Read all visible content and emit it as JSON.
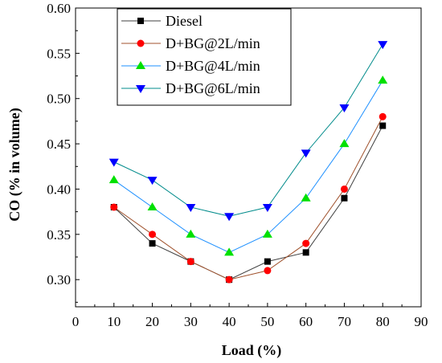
{
  "chart_data": {
    "type": "line",
    "xlabel": "Load (%)",
    "ylabel": "CO (% in volume)",
    "xlim": [
      0,
      90
    ],
    "ylim": [
      0.27,
      0.6
    ],
    "x_ticks": [
      0,
      10,
      20,
      30,
      40,
      50,
      60,
      70,
      80,
      90
    ],
    "y_ticks": [
      0.3,
      0.35,
      0.4,
      0.45,
      0.5,
      0.55,
      0.6
    ],
    "x_tick_labels": [
      "0",
      "10",
      "20",
      "30",
      "40",
      "50",
      "60",
      "70",
      "80",
      "90"
    ],
    "y_tick_labels": [
      "0.30",
      "0.35",
      "0.40",
      "0.45",
      "0.50",
      "0.55",
      "0.60"
    ],
    "grid": false,
    "legend_position": "top-left",
    "x": [
      10,
      20,
      30,
      40,
      50,
      60,
      70,
      80
    ],
    "series": [
      {
        "name": "Diesel",
        "values": [
          0.38,
          0.34,
          0.32,
          0.3,
          0.32,
          0.33,
          0.39,
          0.47
        ],
        "color": "#000000",
        "marker": "square"
      },
      {
        "name": "D+BG@2L/min",
        "values": [
          0.38,
          0.35,
          0.32,
          0.3,
          0.31,
          0.34,
          0.4,
          0.48
        ],
        "color": "#ff0000",
        "marker": "circle"
      },
      {
        "name": "D+BG@4L/min",
        "values": [
          0.41,
          0.38,
          0.35,
          0.33,
          0.35,
          0.39,
          0.45,
          0.52
        ],
        "color": "#00e000",
        "marker": "triangle-up"
      },
      {
        "name": "D+BG@6L/min",
        "values": [
          0.43,
          0.41,
          0.38,
          0.37,
          0.38,
          0.44,
          0.49,
          0.56
        ],
        "color": "#0000ff",
        "marker": "triangle-down"
      }
    ],
    "line_colors": [
      "#404040",
      "#a0522d",
      "#1e90ff",
      "#008b8b"
    ]
  }
}
